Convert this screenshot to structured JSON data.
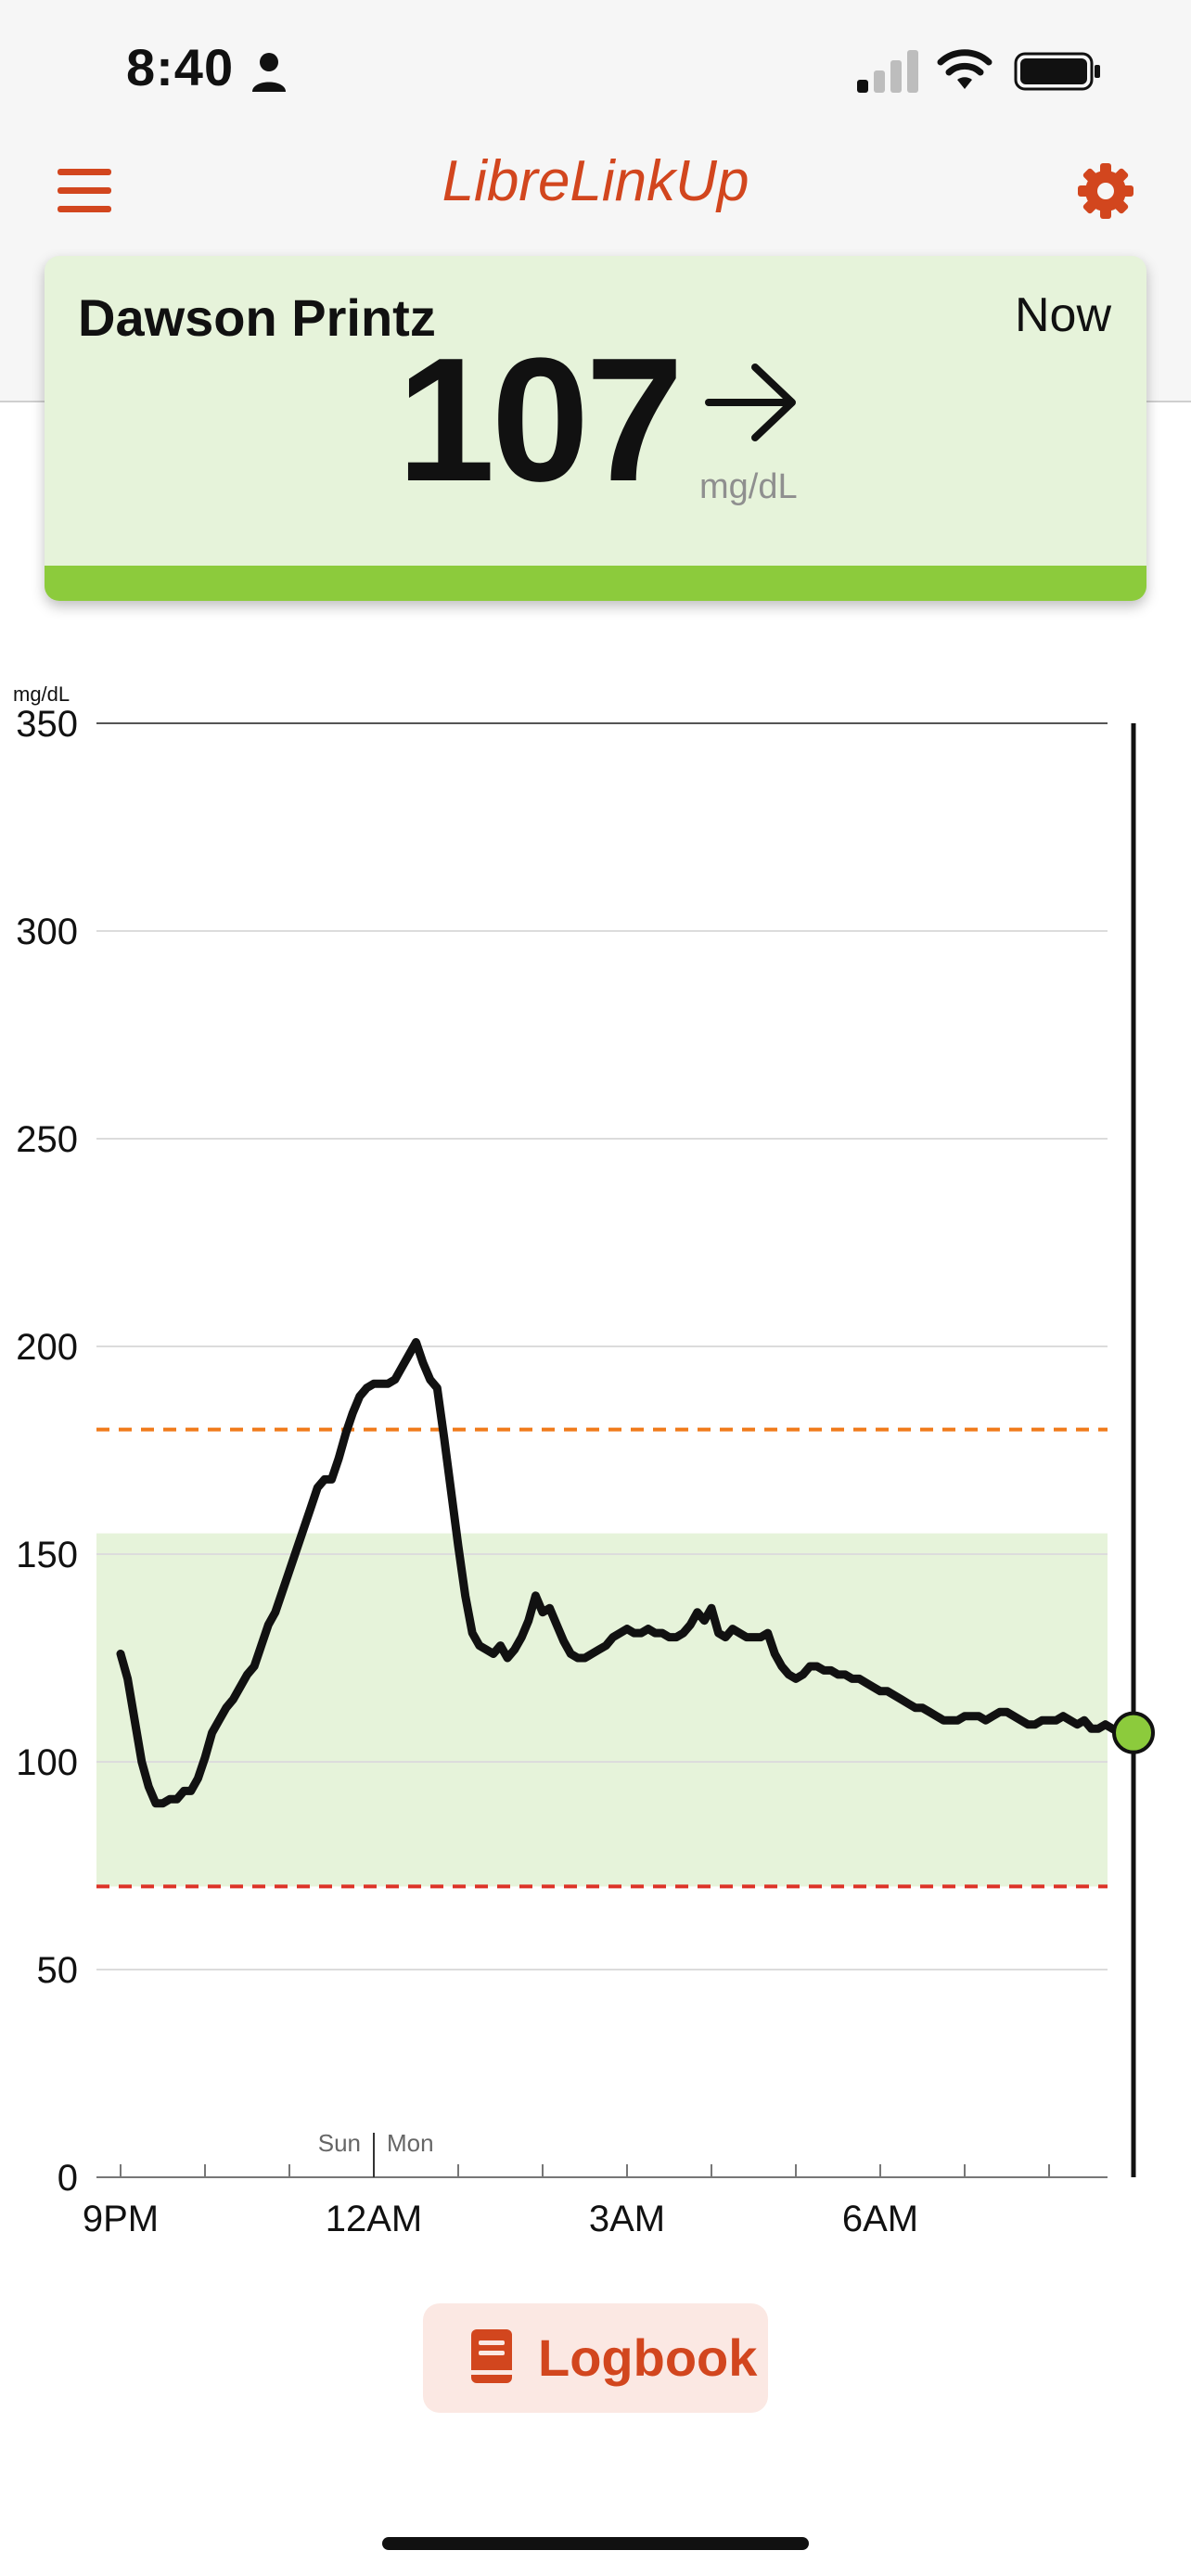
{
  "status_bar": {
    "time": "8:40"
  },
  "header": {
    "title": "LibreLinkUp"
  },
  "reading": {
    "patient_name": "Dawson Printz",
    "time_label": "Now",
    "value": "107",
    "unit": "mg/dL",
    "trend": "steady"
  },
  "colors": {
    "accent": "#d2461e",
    "in_range_fill": "#e6f3da",
    "status_green": "#8ccb3c",
    "high_line": "#f07a1a",
    "low_line": "#dd3327"
  },
  "chart_data": {
    "type": "line",
    "ylabel": "mg/dL",
    "ylim": [
      0,
      350
    ],
    "y_ticks": [
      0,
      50,
      100,
      150,
      200,
      250,
      300,
      350
    ],
    "x_tick_labels": [
      "9PM",
      "12AM",
      "3AM",
      "6AM"
    ],
    "day_divider": {
      "before": "Sun",
      "after": "Mon"
    },
    "target_range": [
      70,
      155
    ],
    "high_threshold": 180,
    "low_threshold": 70,
    "current_value": 107,
    "series": [
      {
        "x_hours": [
          0,
          0.083,
          0.167,
          0.25,
          0.333,
          0.417,
          0.5,
          0.583,
          0.667,
          0.75,
          0.833,
          0.917,
          1.0,
          1.083,
          1.167,
          1.25,
          1.333,
          1.417,
          1.5,
          1.583,
          1.667,
          1.75,
          1.833,
          1.917,
          2.0,
          2.083,
          2.167,
          2.25,
          2.333,
          2.417,
          2.5,
          2.583,
          2.667,
          2.75,
          2.833,
          2.917,
          3.0,
          3.083,
          3.167,
          3.25,
          3.333,
          3.417,
          3.5,
          3.583,
          3.667,
          3.75,
          3.833,
          3.917,
          4.0,
          4.083,
          4.167,
          4.25,
          4.333,
          4.417,
          4.5,
          4.583,
          4.667,
          4.75,
          4.833,
          4.917,
          5.0,
          5.083,
          5.167,
          5.25,
          5.333,
          5.417,
          5.5,
          5.583,
          5.667,
          5.75,
          5.833,
          5.917,
          6.0,
          6.083,
          6.167,
          6.25,
          6.333,
          6.417,
          6.5,
          6.583,
          6.667,
          6.75,
          6.833,
          6.917,
          7.0,
          7.083,
          7.167,
          7.25,
          7.333,
          7.417,
          7.5,
          7.583,
          7.667,
          7.75,
          7.833,
          7.917,
          8.0,
          8.083,
          8.167,
          8.25,
          8.333,
          8.417,
          8.5,
          8.583,
          8.667,
          8.75,
          8.833,
          8.917,
          9.0,
          9.083,
          9.167,
          9.25,
          9.333,
          9.417,
          9.5,
          9.583,
          9.667,
          9.75,
          9.833,
          9.917,
          10.0,
          10.083,
          10.167,
          10.25,
          10.333,
          10.417,
          10.5,
          10.583,
          10.667,
          10.75,
          10.833,
          10.917,
          11.0,
          11.083,
          11.167,
          11.25,
          11.333,
          11.417,
          11.5,
          11.583,
          11.667,
          11.75,
          11.833,
          11.917,
          12.0
        ],
        "values": [
          126,
          120,
          110,
          100,
          94,
          90,
          90,
          91,
          91,
          93,
          93,
          96,
          101,
          107,
          110,
          113,
          115,
          118,
          121,
          123,
          128,
          133,
          136,
          141,
          146,
          151,
          156,
          161,
          166,
          168,
          168,
          173,
          179,
          184,
          188,
          190,
          191,
          191,
          191,
          192,
          195,
          198,
          201,
          196,
          192,
          190,
          178,
          165,
          152,
          140,
          131,
          128,
          127,
          126,
          128,
          125,
          127,
          130,
          134,
          140,
          136,
          137,
          133,
          129,
          126,
          125,
          125,
          126,
          127,
          128,
          130,
          131,
          132,
          131,
          131,
          132,
          131,
          131,
          130,
          130,
          131,
          133,
          136,
          134,
          137,
          131,
          130,
          132,
          131,
          130,
          130,
          130,
          131,
          126,
          123,
          121,
          120,
          121,
          123,
          123,
          122,
          122,
          121,
          121,
          120,
          120,
          119,
          118,
          117,
          117,
          116,
          115,
          114,
          113,
          113,
          112,
          111,
          110,
          110,
          110,
          111,
          111,
          111,
          110,
          111,
          112,
          112,
          111,
          110,
          109,
          109,
          110,
          110,
          110,
          111,
          110,
          109,
          110,
          108,
          108,
          109,
          108,
          107,
          107,
          107
        ]
      }
    ]
  },
  "logbook": {
    "label": "Logbook"
  }
}
